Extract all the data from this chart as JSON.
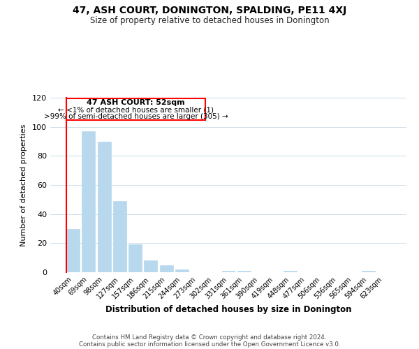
{
  "title": "47, ASH COURT, DONINGTON, SPALDING, PE11 4XJ",
  "subtitle": "Size of property relative to detached houses in Donington",
  "xlabel": "Distribution of detached houses by size in Donington",
  "ylabel": "Number of detached properties",
  "bar_color": "#b8d8ee",
  "highlight_color": "#cc0000",
  "categories": [
    "40sqm",
    "69sqm",
    "98sqm",
    "127sqm",
    "157sqm",
    "186sqm",
    "215sqm",
    "244sqm",
    "273sqm",
    "302sqm",
    "331sqm",
    "361sqm",
    "390sqm",
    "419sqm",
    "448sqm",
    "477sqm",
    "506sqm",
    "536sqm",
    "565sqm",
    "594sqm",
    "623sqm"
  ],
  "values": [
    30,
    97,
    90,
    49,
    19,
    8,
    5,
    2,
    0,
    0,
    1,
    1,
    0,
    0,
    1,
    0,
    0,
    0,
    0,
    1,
    0
  ],
  "highlight_bar_index": 0,
  "annotation_title": "47 ASH COURT: 52sqm",
  "annotation_line1": "← <1% of detached houses are smaller (1)",
  "annotation_line2": ">99% of semi-detached houses are larger (305) →",
  "ylim": [
    0,
    120
  ],
  "yticks": [
    0,
    20,
    40,
    60,
    80,
    100,
    120
  ],
  "footer_line1": "Contains HM Land Registry data © Crown copyright and database right 2024.",
  "footer_line2": "Contains public sector information licensed under the Open Government Licence v3.0.",
  "background_color": "#ffffff",
  "grid_color": "#ccdde8"
}
